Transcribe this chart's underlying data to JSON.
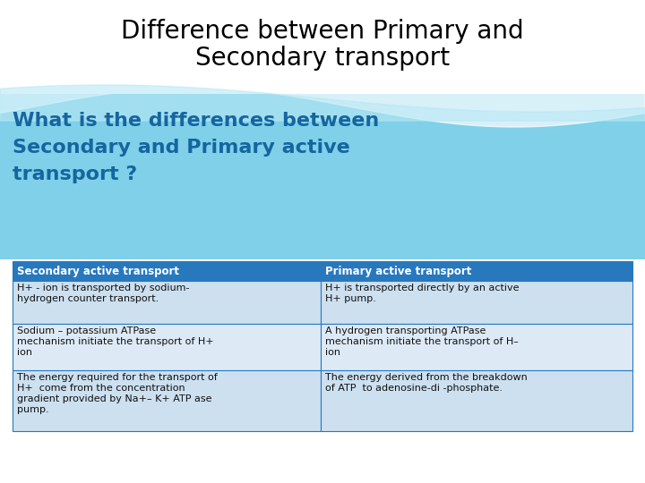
{
  "title_line1": "Difference between Primary and",
  "title_line2": "Secondary transport",
  "subtitle_line1": "What is the differences between",
  "subtitle_line2": "Secondary and Primary active",
  "subtitle_line3": "transport ?",
  "subtitle_color": "#1565a0",
  "header_bg": "#2878be",
  "header_text_color": "#ffffff",
  "row_bg_odd": "#cce0f0",
  "row_bg_even": "#ddeaf6",
  "table_border_color": "#2878be",
  "wave_color": "#7fd0e8",
  "wave_light": "#b8e8f5",
  "headers": [
    "Secondary active transport",
    "Primary active transport"
  ],
  "rows": [
    [
      "H+ - ion is transported by sodium-\nhydrogen counter transport.",
      "H+ is transported directly by an active\nH+ pump."
    ],
    [
      "Sodium – potassium ATPase\nmechanism initiate the transport of H+\nion",
      "A hydrogen transporting ATPase\nmechanism initiate the transport of H–\nion"
    ],
    [
      "The energy required for the transport of\nH+  come from the concentration\ngradient provided by Na+– K+ ATP ase\npump.",
      "The energy derived from the breakdown\nof ATP  to adenosine-di -phosphate."
    ]
  ],
  "background_color": "#ffffff",
  "title_fontsize": 20,
  "subtitle_fontsize": 16,
  "table_header_fontsize": 8.5,
  "table_body_fontsize": 8.0
}
